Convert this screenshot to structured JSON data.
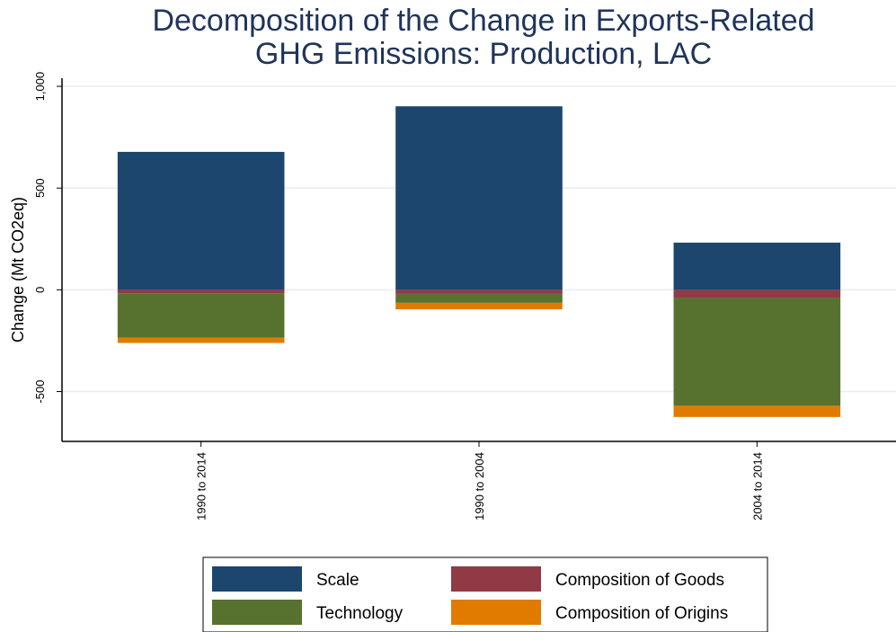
{
  "chart_data": {
    "type": "bar",
    "stacked": true,
    "title_lines": [
      "Decomposition of the Change in Exports-Related",
      "GHG Emissions: Production, LAC"
    ],
    "ylabel": "Change (Mt CO2eq)",
    "xlabel": "",
    "ylim": [
      -745,
      1040
    ],
    "yticks": [
      -500,
      0,
      500,
      1000
    ],
    "ytick_labels": [
      "-500",
      "0",
      "500",
      "1,000"
    ],
    "grid": true,
    "legend_position": "bottom",
    "categories": [
      "1990 to 2014",
      "1990 to 2004",
      "2004 to 2014"
    ],
    "series": [
      {
        "name": "Scale",
        "color": "#1c466e",
        "values": [
          678,
          902,
          232
        ]
      },
      {
        "name": "Composition of Goods",
        "color": "#903a45",
        "values": [
          -17,
          -20,
          -40
        ]
      },
      {
        "name": "Technology",
        "color": "#57722f",
        "values": [
          -218,
          -44,
          -530
        ]
      },
      {
        "name": "Composition of Origins",
        "color": "#e07b00",
        "values": [
          -26,
          -32,
          -55
        ]
      }
    ],
    "legend_order": [
      "Scale",
      "Composition of Goods",
      "Technology",
      "Composition of Origins"
    ]
  }
}
